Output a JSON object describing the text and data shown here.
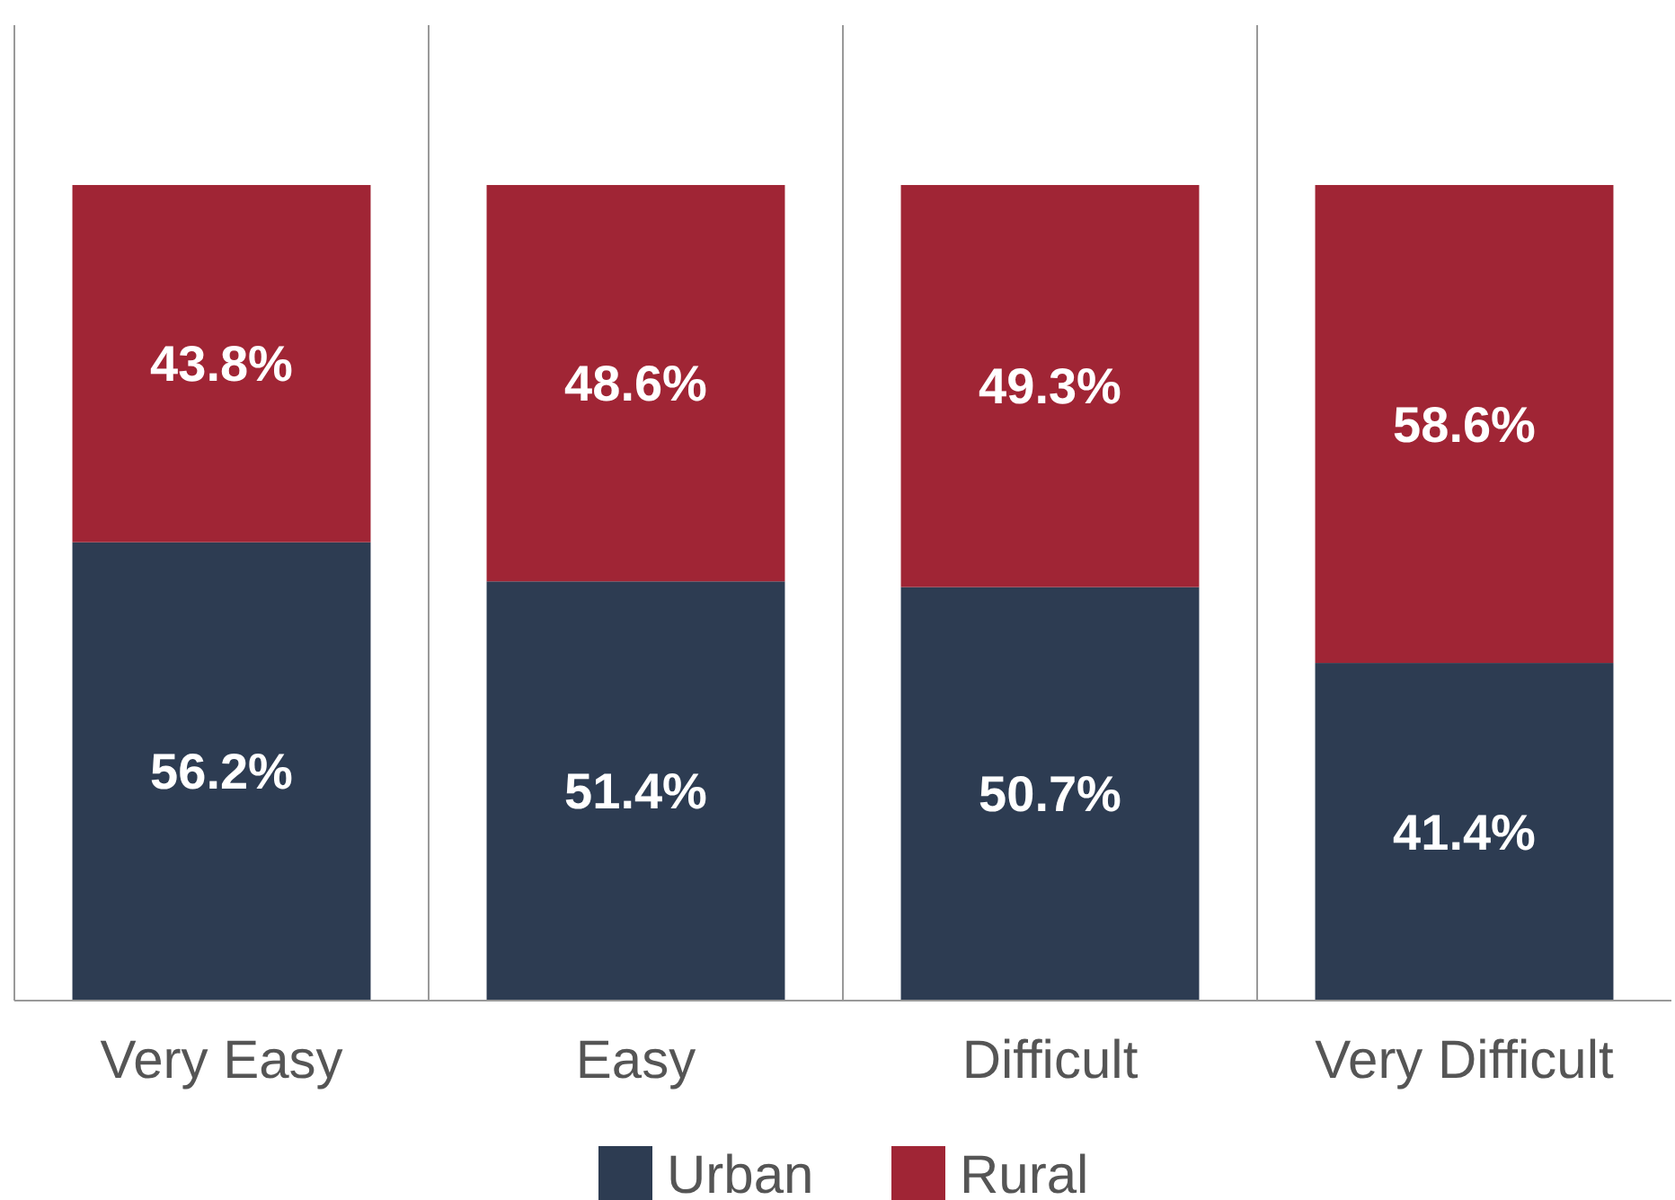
{
  "chart_data": {
    "type": "bar",
    "stacked": true,
    "categories": [
      "Very Easy",
      "Easy",
      "Difficult",
      "Very Difficult"
    ],
    "series": [
      {
        "name": "Urban",
        "color": "#2d3c52",
        "values": [
          56.2,
          51.4,
          50.7,
          41.4
        ],
        "value_labels": [
          "56.2%",
          "51.4%",
          "50.7%",
          "41.4%"
        ]
      },
      {
        "name": "Rural",
        "color": "#a02535",
        "values": [
          43.8,
          48.6,
          49.3,
          58.6
        ],
        "value_labels": [
          "43.8%",
          "48.6%",
          "49.3%",
          "58.6%"
        ]
      }
    ],
    "legend": "bottom"
  }
}
